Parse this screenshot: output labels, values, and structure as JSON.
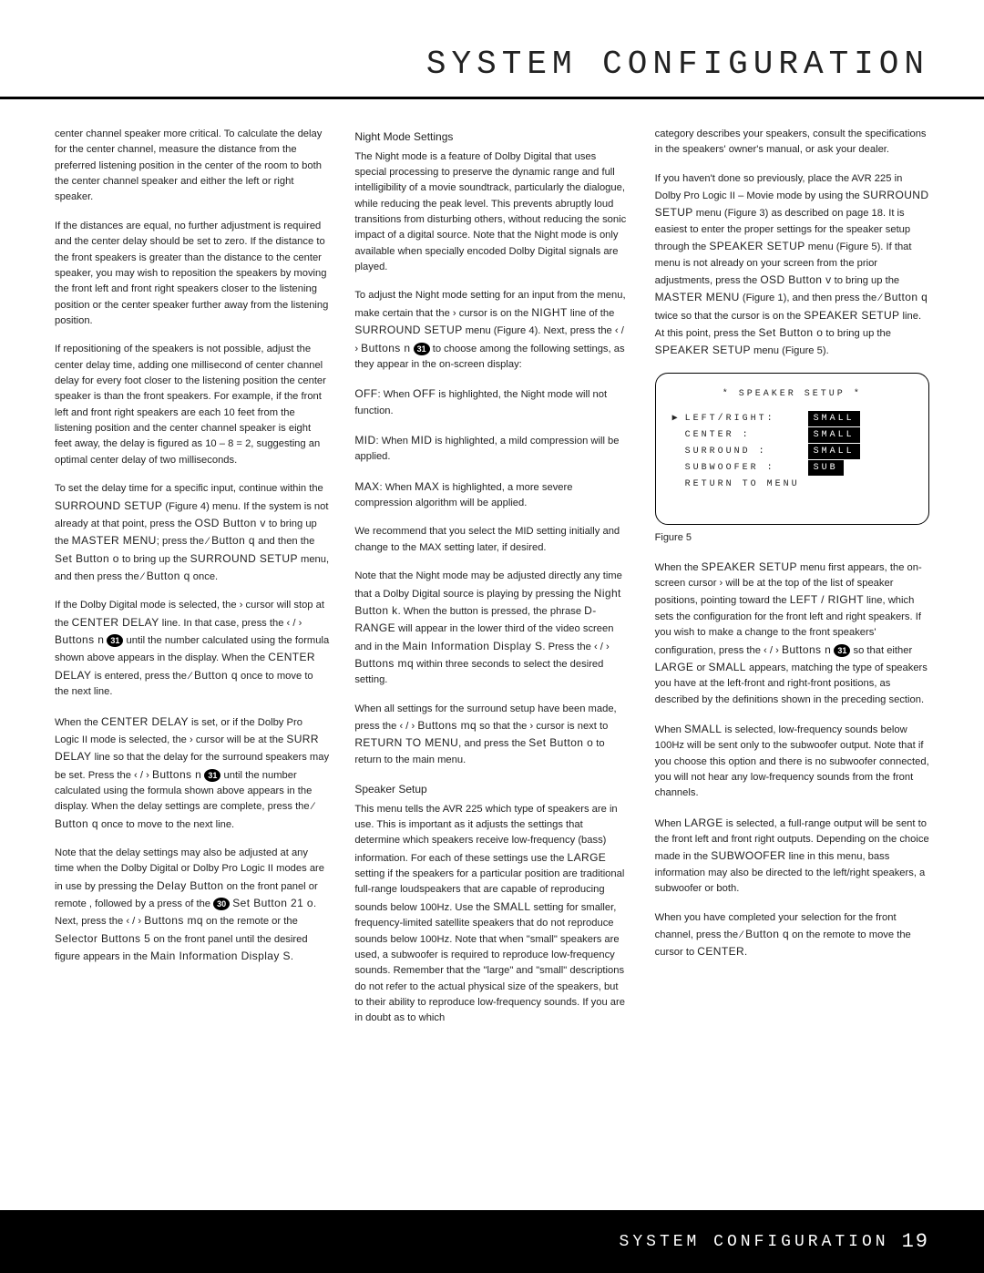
{
  "header": {
    "title": "SYSTEM CONFIGURATION"
  },
  "footer": {
    "label": "SYSTEM CONFIGURATION",
    "page": "19"
  },
  "col1": {
    "p1": "center channel speaker more critical. To calculate the delay for the center channel, measure the distance from the preferred listening position in the center of the room to both the center channel speaker and either the left or right speaker.",
    "p2": "If the distances are equal, no further adjustment is required and the center delay should be set to zero. If the distance to the front speakers is greater than the distance to the center speaker, you may wish to reposition the speakers by moving the front left and front right speakers closer to the listening position or the center speaker further away from the listening position.",
    "p3": "If repositioning of the speakers is not possible, adjust the center delay time, adding one millisecond of center channel delay for every foot closer to the listening position the center speaker is than the front speakers. For example, if the front left and front right speakers are each 10 feet from the listening position and the center channel speaker is eight feet away, the delay is figured as 10 – 8 = 2, suggesting an optimal center delay of two milliseconds.",
    "p4a": "To set the delay time for a specific input, continue within the ",
    "p4_surround": "SURROUND SETUP",
    "p4b": " (Figure 4) menu. If the system is not already at that point, press the ",
    "p4_osd": "OSD Button v",
    "p4c": " to bring up the ",
    "p4_master": "MASTER MENU",
    "p4d": "; press the ⁄ ",
    "p4_btnq": "Button q",
    "p4e": " and then the ",
    "p4_set": "Set Button o",
    "p4f": " to bring up the ",
    "p4_surround2": "SURROUND SETUP",
    "p4g": " menu, and then press the ⁄ ",
    "p4_btnq2": "Button q",
    "p4h": " once.",
    "p5a": "If the Dolby Digital mode is selected, the › cursor will stop at the ",
    "p5_cd": "CENTER DELAY",
    "p5b": " line. In that case, press the ‹ / › ",
    "p5_btns": "Buttons n",
    "p5c": " until the number calculated using the formula shown above appears in the display. When the ",
    "p5_cd2": "CENTER DELAY",
    "p5d": " is entered, press the ⁄ ",
    "p5_btnq": "Button q",
    "p5e": " once to move to the next line.",
    "p6a": "When the ",
    "p6_cd": "CENTER DELAY",
    "p6b": " is set, or if the Dolby Pro Logic II mode is selected, the › cursor will be at the ",
    "p6_surr": "SURR DELAY",
    "p6c": " line so that the delay for the surround speakers may be set. Press the ‹ / › ",
    "p6_btns": "Buttons n",
    "p6d": " until the number calculated using the formula shown above appears in the display. When the delay settings are complete, press the ⁄ ",
    "p6_btnq": "Button q",
    "p6e": " once to move to the next line.",
    "p7a": "Note that the delay settings may also be adjusted at any time when the Dolby Digital or Dolby Pro Logic II modes are in use by pressing the ",
    "p7_delay": "Delay Button",
    "p7b": " on the front panel or remote , followed by a press of the ",
    "p7_set": "Set Button 21 o",
    "p7c": ". Next, press the ‹ / › ",
    "p7_btns": "Buttons mq",
    "p7d": " on the remote or the ",
    "p7_sel": "Selector Buttons 5",
    "p7e": " on the front panel until the desired figure appears in the ",
    "p7_mid": "Main Information Display S",
    "p7f": "."
  },
  "col2": {
    "h1": "Night Mode Settings",
    "p1": "The Night mode is a feature of Dolby Digital that uses special processing to preserve the dynamic range and full intelligibility of a movie soundtrack, particularly the dialogue, while reducing the peak level. This prevents abruptly loud transitions from disturbing others, without reducing the sonic impact of a digital source. Note that the Night mode is only available when specially encoded Dolby Digital signals are played.",
    "p2a": "To adjust the Night mode setting for an input from the menu, make certain that the › cursor is on the ",
    "p2_night": "NIGHT",
    "p2b": " line of the ",
    "p2_surr": "SURROUND SETUP",
    "p2c": " menu (Figure 4). Next, press the ‹ / › ",
    "p2_btns": "Buttons n",
    "p2d": " to choose among the following settings, as they appear in the on-screen display:",
    "p3a": "OFF",
    "p3b": ": When ",
    "p3c": "OFF",
    "p3d": " is highlighted, the Night mode will not function.",
    "p4a": "MID",
    "p4b": ": When ",
    "p4c": "MID",
    "p4d": " is highlighted, a mild compression will be applied.",
    "p5a": "MAX",
    "p5b": ": When ",
    "p5c": "MAX",
    "p5d": " is highlighted, a more severe compression algorithm will be applied.",
    "p6": "We recommend that you select the MID setting initially and change to the MAX setting later, if desired.",
    "p7a": "Note that the Night mode may be adjusted directly any time that a Dolby Digital source is playing by pressing the ",
    "p7_nb": "Night Button k",
    "p7b": ". When the button is pressed, the phrase ",
    "p7_dr": "D-RANGE",
    "p7c": " will appear in the lower third of the video screen and in the ",
    "p7_mid": "Main Information Display S",
    "p7d": ". Press the ‹ / › ",
    "p7_btns": "Buttons mq",
    "p7e": " within three seconds to select the desired setting.",
    "p8a": "When all settings for the surround setup have been made, press the ‹ / › ",
    "p8_btns": "Buttons mq",
    "p8b": " so that the › cursor is next to ",
    "p8_rtm": "RETURN TO MENU",
    "p8c": ", and press the ",
    "p8_set": "Set Button o",
    "p8d": " to return to the main menu.",
    "h2": "Speaker Setup",
    "p9a": "This menu tells the AVR 225 which type of speakers are in use. This is important as it adjusts the settings that determine which speakers receive low-frequency (bass) information. For each of these settings use the ",
    "p9_large": "LARGE",
    "p9b": " setting if the speakers for a particular position are traditional full-range loudspeakers that are capable of reproducing sounds below 100Hz. Use the ",
    "p9_small": "SMALL",
    "p9c": " setting for smaller, frequency-limited satellite speakers that do not reproduce sounds below 100Hz. Note that when \"small\" speakers are used, a subwoofer is required to reproduce low-frequency sounds. Remember that the \"large\" and \"small\" descriptions do not refer to the actual physical size of the speakers, but to their ability to reproduce low-frequency sounds. If you are in doubt as to which"
  },
  "col3": {
    "p1": "category describes your speakers, consult the specifications in the speakers' owner's manual, or ask your dealer.",
    "p2a": "If you haven't done so previously, place the AVR 225 in Dolby Pro Logic II – Movie mode by using the ",
    "p2_ss": "SURROUND SETUP",
    "p2b": " menu (Figure 3) as described on page 18. It is easiest to enter the proper settings for the speaker setup through the ",
    "p2_sps": "SPEAKER SETUP",
    "p2c": " menu (Figure 5). If that menu is not already on your screen from the prior adjustments, press the ",
    "p2_osd": "OSD Button v",
    "p2d": " to bring up the ",
    "p2_mm": "MASTER MENU",
    "p2e": " (Figure 1), and then press the ⁄ ",
    "p2_btnq": "Button q",
    "p2f": " twice so that the cursor is on the ",
    "p2_sps2": "SPEAKER SETUP",
    "p2g": " line. At this point, press the ",
    "p2_set": "Set Button o",
    "p2h": " to bring up the ",
    "p2_sps3": "SPEAKER SETUP",
    "p2i": " menu (Figure 5).",
    "osd": {
      "title": "* SPEAKER SETUP *",
      "rows": [
        {
          "cursor": "▶",
          "label": "LEFT/RIGHT:",
          "value": "SMALL"
        },
        {
          "cursor": "",
          "label": "CENTER    :",
          "value": "SMALL"
        },
        {
          "cursor": "",
          "label": "SURROUND  :",
          "value": "SMALL"
        },
        {
          "cursor": "",
          "label": "SUBWOOFER :",
          "value": "SUB"
        }
      ],
      "return": "RETURN TO MENU"
    },
    "fig": "Figure 5",
    "p3a": "When the ",
    "p3_sps": "SPEAKER SETUP",
    "p3b": " menu first appears, the on-screen cursor › will be at the top of the list of speaker positions, pointing toward the ",
    "p3_lr": "LEFT / RIGHT",
    "p3c": " line, which sets the configuration for the front left and right speakers. If you wish to make a change to the front speakers' configuration, press the ‹ / › ",
    "p3_btns": "Buttons n",
    "p3d": " so that either ",
    "p3_large": "LARGE",
    "p3e": " or ",
    "p3_small": "SMALL",
    "p3f": " appears, matching the type of speakers you have at the left-front and right-front positions, as described by the definitions shown in the preceding section.",
    "p4a": "When ",
    "p4_small": "SMALL",
    "p4b": " is selected, low-frequency sounds below 100Hz will be sent only to the subwoofer output. Note that if you choose this option and there is no subwoofer connected, you will not hear any low-frequency sounds from the front channels.",
    "p5a": "When ",
    "p5_large": "LARGE",
    "p5b": " is selected, a full-range output will be sent to the front left and front right outputs. Depending on the choice made in the ",
    "p5_sub": "SUBWOOFER",
    "p5c": " line in this menu, bass information may also be directed to the left/right speakers, a subwoofer or both.",
    "p6a": "When you have completed your selection for the front channel, press the ⁄ ",
    "p6_btnq": "Button q",
    "p6b": " on the remote to move the cursor to ",
    "p6_center": "CENTER",
    "p6c": "."
  },
  "icons": {
    "i31": "31",
    "i30": "30"
  }
}
